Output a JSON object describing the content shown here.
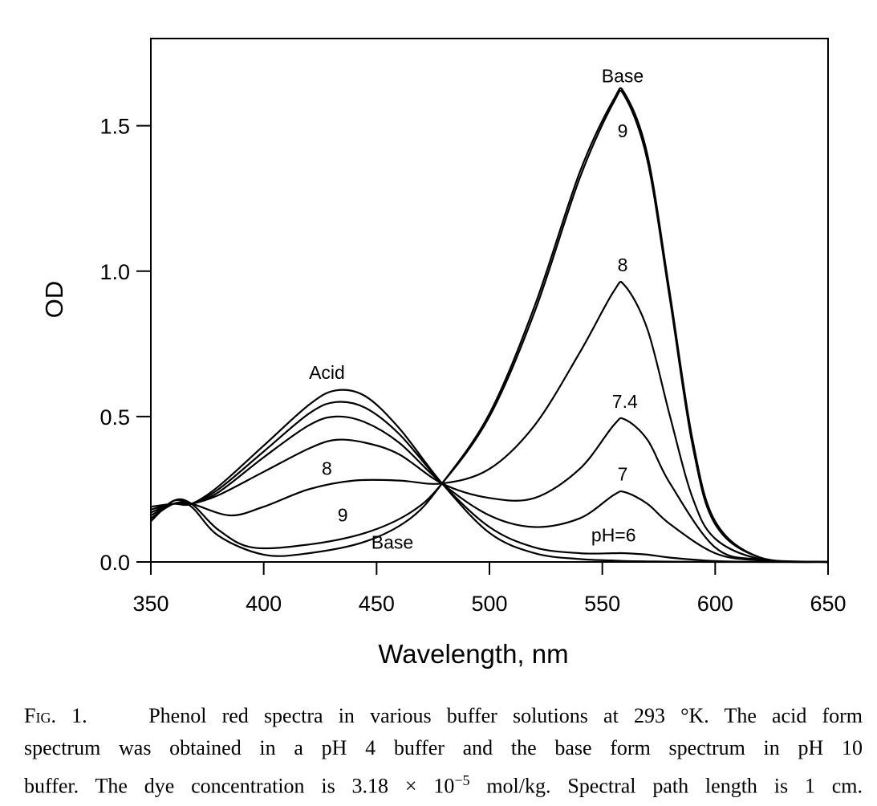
{
  "chart_data": {
    "type": "line",
    "xlabel": "Wavelength, nm",
    "ylabel": "OD",
    "xlim": [
      350,
      650
    ],
    "ylim": [
      0,
      1.8
    ],
    "x_ticks": [
      "350",
      "400",
      "450",
      "500",
      "550",
      "600",
      "650"
    ],
    "y_ticks": [
      "0.0",
      "0.5",
      "1.0",
      "1.5"
    ],
    "grid": false,
    "legend": "none",
    "isosbestic_points": [
      [
        368,
        0.2
      ],
      [
        479,
        0.27
      ]
    ],
    "series": [
      {
        "name": "Acid",
        "x": [
          350,
          360,
          368,
          380,
          400,
          420,
          432,
          445,
          460,
          479,
          500,
          520,
          540,
          555,
          560,
          570,
          580,
          600,
          620,
          650
        ],
        "y": [
          0.19,
          0.2,
          0.2,
          0.26,
          0.4,
          0.54,
          0.59,
          0.57,
          0.46,
          0.27,
          0.1,
          0.03,
          0.01,
          0.005,
          0.003,
          0.002,
          0.001,
          0,
          0,
          0
        ]
      },
      {
        "name": "pH=6",
        "x": [
          350,
          360,
          368,
          380,
          400,
          420,
          432,
          445,
          460,
          479,
          500,
          520,
          540,
          555,
          560,
          570,
          580,
          600,
          620,
          650
        ],
        "y": [
          0.18,
          0.2,
          0.2,
          0.25,
          0.38,
          0.51,
          0.55,
          0.53,
          0.44,
          0.27,
          0.12,
          0.05,
          0.03,
          0.03,
          0.03,
          0.025,
          0.015,
          0.003,
          0,
          0
        ]
      },
      {
        "name": "7",
        "x": [
          350,
          360,
          368,
          380,
          400,
          420,
          432,
          445,
          460,
          479,
          500,
          520,
          540,
          555,
          560,
          570,
          580,
          600,
          620,
          650
        ],
        "y": [
          0.17,
          0.2,
          0.2,
          0.24,
          0.36,
          0.47,
          0.5,
          0.48,
          0.41,
          0.27,
          0.16,
          0.12,
          0.15,
          0.23,
          0.24,
          0.2,
          0.13,
          0.03,
          0.005,
          0
        ]
      },
      {
        "name": "7.4",
        "x": [
          350,
          360,
          368,
          380,
          400,
          420,
          432,
          445,
          460,
          479,
          500,
          520,
          540,
          555,
          560,
          570,
          580,
          600,
          620,
          650
        ],
        "y": [
          0.16,
          0.2,
          0.2,
          0.23,
          0.31,
          0.39,
          0.42,
          0.41,
          0.37,
          0.27,
          0.22,
          0.22,
          0.32,
          0.47,
          0.49,
          0.42,
          0.27,
          0.05,
          0.008,
          0
        ]
      },
      {
        "name": "8",
        "x": [
          350,
          360,
          368,
          385,
          400,
          420,
          440,
          460,
          479,
          500,
          520,
          540,
          555,
          560,
          570,
          580,
          590,
          600,
          620,
          650
        ],
        "y": [
          0.15,
          0.2,
          0.2,
          0.16,
          0.19,
          0.25,
          0.28,
          0.28,
          0.27,
          0.32,
          0.47,
          0.72,
          0.93,
          0.95,
          0.8,
          0.5,
          0.22,
          0.08,
          0.01,
          0
        ]
      },
      {
        "name": "9",
        "x": [
          350,
          360,
          368,
          380,
          395,
          420,
          445,
          465,
          479,
          500,
          520,
          540,
          555,
          560,
          570,
          580,
          590,
          600,
          620,
          650
        ],
        "y": [
          0.14,
          0.21,
          0.2,
          0.11,
          0.05,
          0.06,
          0.1,
          0.17,
          0.27,
          0.5,
          0.86,
          1.32,
          1.58,
          1.6,
          1.38,
          0.9,
          0.4,
          0.13,
          0.015,
          0
        ]
      },
      {
        "name": "Base",
        "x": [
          350,
          360,
          368,
          380,
          400,
          420,
          445,
          465,
          479,
          500,
          520,
          540,
          555,
          560,
          570,
          580,
          590,
          600,
          620,
          650
        ],
        "y": [
          0.14,
          0.21,
          0.19,
          0.09,
          0.025,
          0.03,
          0.07,
          0.15,
          0.27,
          0.51,
          0.88,
          1.34,
          1.59,
          1.61,
          1.4,
          0.92,
          0.42,
          0.14,
          0.015,
          0
        ]
      }
    ],
    "annotations": [
      {
        "text": "Base",
        "x": 559,
        "y": 1.65
      },
      {
        "text": "9",
        "x": 559,
        "y": 1.46
      },
      {
        "text": "8",
        "x": 559,
        "y": 1.0
      },
      {
        "text": "7.4",
        "x": 560,
        "y": 0.53
      },
      {
        "text": "7",
        "x": 559,
        "y": 0.28
      },
      {
        "text": "pH=6",
        "x": 555,
        "y": 0.07
      },
      {
        "text": "Acid",
        "x": 428,
        "y": 0.63
      },
      {
        "text": "8",
        "x": 428,
        "y": 0.3
      },
      {
        "text": "9",
        "x": 435,
        "y": 0.14
      },
      {
        "text": "Base",
        "x": 457,
        "y": 0.045
      }
    ]
  },
  "caption": {
    "label": "Fig. 1.",
    "line1": "Phenol red spectra in various buffer solutions at 293 °K. The acid form",
    "line2": "spectrum was obtained in a pH 4 buffer and the base form spectrum in pH 10",
    "line3a": "buffer. The dye concentration is 3.18 × 10",
    "line3exp": "−5",
    "line3b": " mol/kg. Spectral path length is 1 cm."
  }
}
